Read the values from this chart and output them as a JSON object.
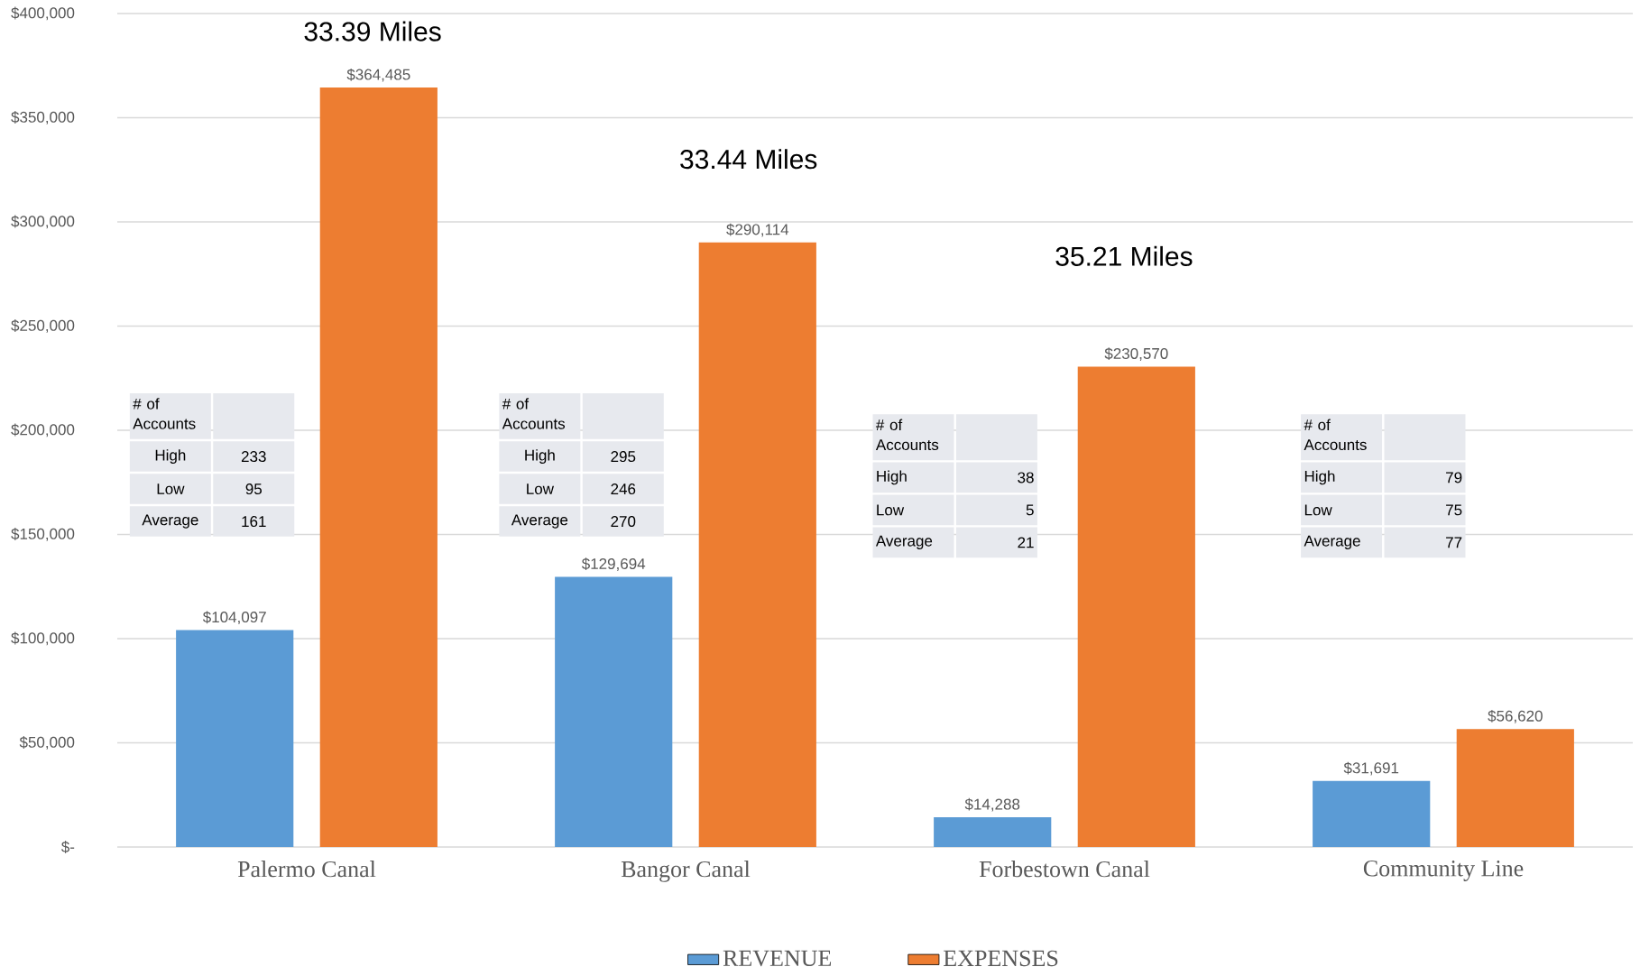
{
  "chart_data": {
    "type": "bar",
    "categories": [
      "Palermo Canal",
      "Bangor Canal",
      "Forbestown Canal",
      "Community Line"
    ],
    "series": [
      {
        "name": "REVENUE",
        "color": "#5b9bd5",
        "values": [
          104097,
          129694,
          14288,
          31691
        ],
        "value_labels": [
          "$104,097",
          "$129,694",
          "$14,288",
          "$31,691"
        ]
      },
      {
        "name": "EXPENSES",
        "color": "#ed7d31",
        "values": [
          364485,
          290114,
          230570,
          56620
        ],
        "value_labels": [
          "$364,485",
          "$290,114",
          "$230,570",
          "$56,620"
        ]
      }
    ],
    "ylim": [
      0,
      400000
    ],
    "yticks": [
      {
        "value": 0,
        "label": "$-"
      },
      {
        "value": 50000,
        "label": "$50,000"
      },
      {
        "value": 100000,
        "label": "$100,000"
      },
      {
        "value": 150000,
        "label": "$150,000"
      },
      {
        "value": 200000,
        "label": "$200,000"
      },
      {
        "value": 250000,
        "label": "$250,000"
      },
      {
        "value": 300000,
        "label": "$300,000"
      },
      {
        "value": 350000,
        "label": "$350,000"
      },
      {
        "value": 400000,
        "label": "$400,000"
      }
    ],
    "grid": "y",
    "legend": "bottom",
    "annotations": [
      "33.39 Miles",
      "33.44 Miles",
      "35.21 Miles",
      "# of Accounts",
      "High",
      "233",
      "Low",
      "95",
      "Average",
      "161",
      "# of Accounts",
      "High",
      "295",
      "Low",
      "246",
      "Average",
      "270",
      "# of Accounts",
      "High",
      "38",
      "Low",
      "5",
      "Average",
      "21",
      "# of Accounts",
      "High",
      "79",
      "Low",
      "75",
      "Average",
      "77"
    ]
  }
}
